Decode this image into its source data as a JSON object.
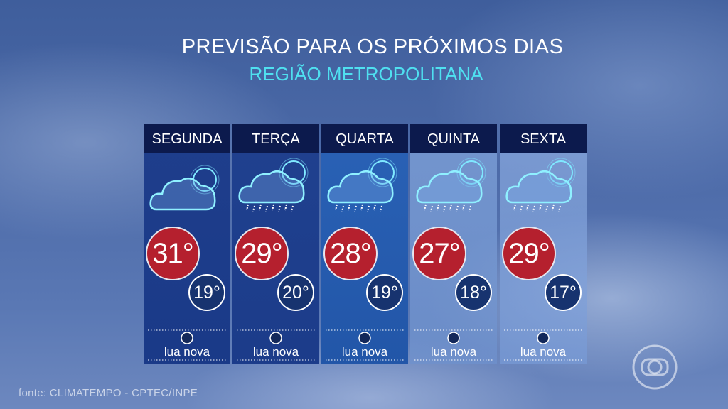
{
  "header": {
    "title": "PREVISÃO PARA OS PRÓXIMOS DIAS",
    "subtitle": "REGIÃO METROPOLITANA"
  },
  "days": [
    {
      "name": "SEGUNDA",
      "max": "31°",
      "min": "19°",
      "moon": "lua nova"
    },
    {
      "name": "TERÇA",
      "max": "29°",
      "min": "20°",
      "moon": "lua nova"
    },
    {
      "name": "QUARTA",
      "max": "28°",
      "min": "19°",
      "moon": "lua nova"
    },
    {
      "name": "QUINTA",
      "max": "27°",
      "min": "18°",
      "moon": "lua nova"
    },
    {
      "name": "SEXTA",
      "max": "29°",
      "min": "17°",
      "moon": "lua nova"
    }
  ],
  "source": "fonte: CLIMATEMPO - CPTEC/INPE"
}
